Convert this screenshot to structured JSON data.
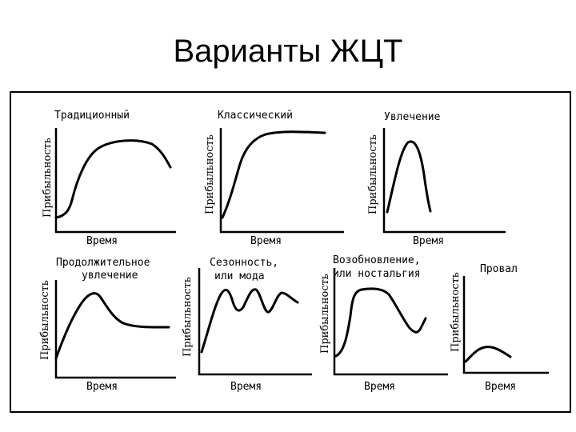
{
  "title": "Варианты ЖЦТ",
  "y_axis_label": "Прибыльность",
  "x_axis_label": "Время",
  "panels": [
    {
      "title_lines": [
        "Традиционный"
      ]
    },
    {
      "title_lines": [
        "Классический"
      ]
    },
    {
      "title_lines": [
        "Увлечение"
      ]
    },
    {
      "title_lines": [
        "Продолжительное",
        "увлечение"
      ]
    },
    {
      "title_lines": [
        "Сезонность,",
        "или мода"
      ]
    },
    {
      "title_lines": [
        "Возобновление,",
        "или ностальгия"
      ]
    },
    {
      "title_lines": [
        "Провал"
      ]
    }
  ]
}
